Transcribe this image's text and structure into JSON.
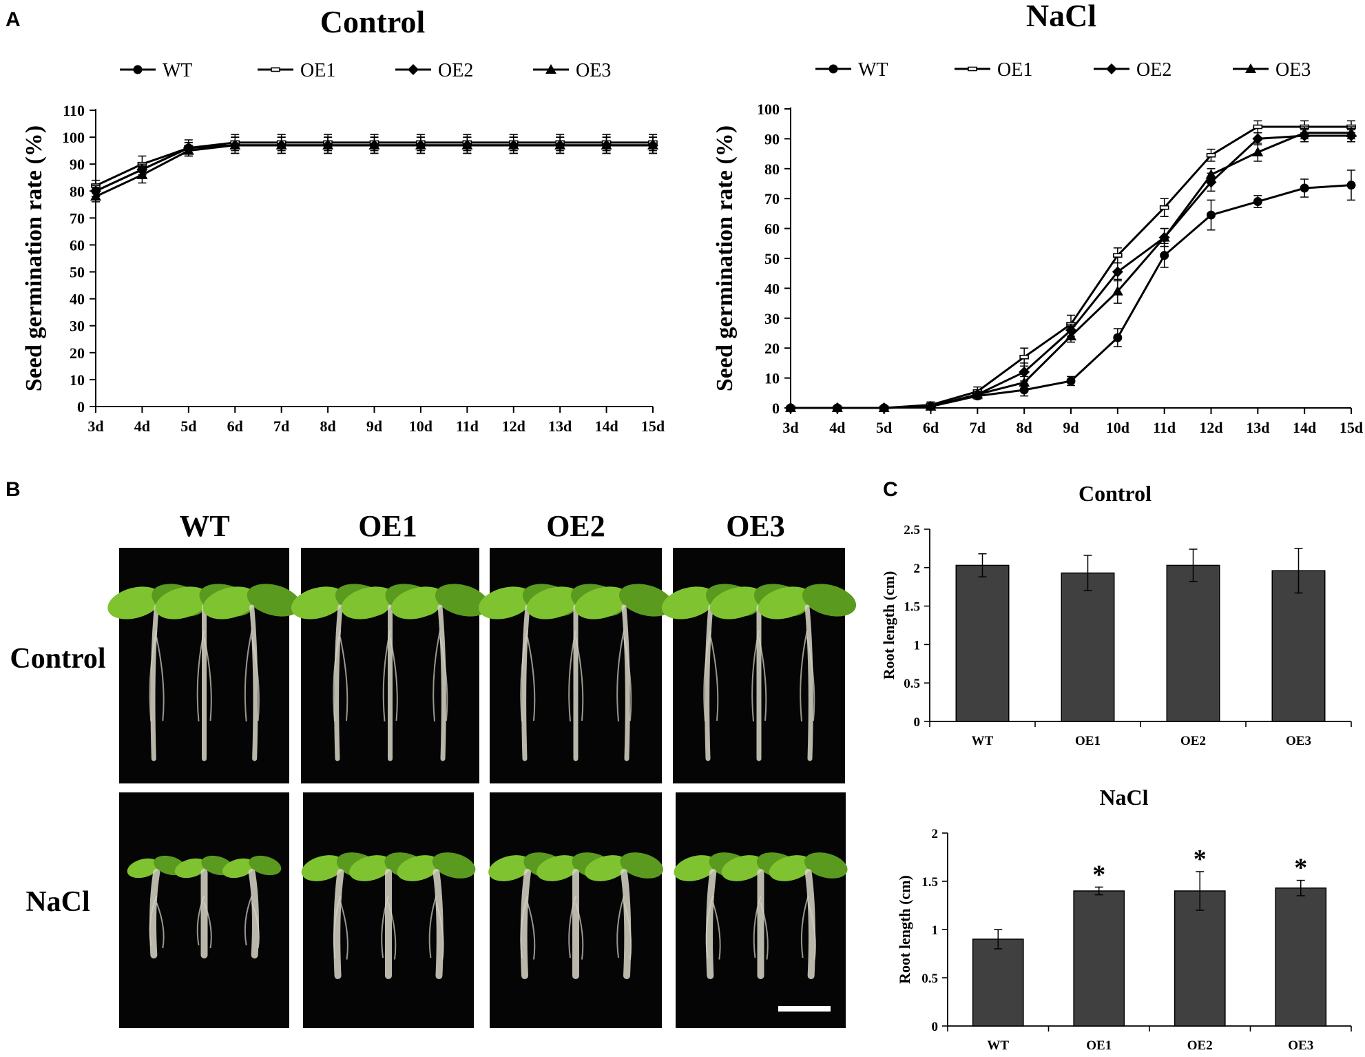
{
  "panels": {
    "a": "A",
    "b": "B",
    "c": "C"
  },
  "chart_data": [
    {
      "id": "A-control",
      "type": "line",
      "title": "Control",
      "xlabel": "",
      "ylabel": "Seed germination rate (%)",
      "categories": [
        "3d",
        "4d",
        "5d",
        "6d",
        "7d",
        "8d",
        "9d",
        "10d",
        "11d",
        "12d",
        "13d",
        "14d",
        "15d"
      ],
      "ylim": [
        0,
        110
      ],
      "yticks": [
        0,
        10,
        20,
        30,
        40,
        50,
        60,
        70,
        80,
        90,
        100,
        110
      ],
      "legend_position": "top",
      "series": [
        {
          "name": "WT",
          "marker": "circle",
          "values": [
            80,
            88,
            96,
            97,
            97,
            97,
            97,
            97,
            97,
            97,
            97,
            97,
            97
          ],
          "errors": [
            2,
            2,
            2,
            3,
            3,
            3,
            3,
            3,
            3,
            3,
            3,
            3,
            3
          ]
        },
        {
          "name": "OE1",
          "marker": "dash",
          "values": [
            82,
            90,
            96,
            98,
            98,
            98,
            98,
            98,
            98,
            98,
            98,
            98,
            98
          ],
          "errors": [
            2,
            3,
            3,
            3,
            3,
            3,
            3,
            3,
            3,
            3,
            3,
            3,
            3
          ]
        },
        {
          "name": "OE2",
          "marker": "diamond",
          "values": [
            80,
            88,
            96,
            97,
            97,
            97,
            97,
            97,
            97,
            97,
            97,
            97,
            97
          ],
          "errors": [
            2,
            2,
            2,
            3,
            3,
            3,
            3,
            3,
            3,
            3,
            3,
            3,
            3
          ]
        },
        {
          "name": "OE3",
          "marker": "triangle",
          "values": [
            78,
            86,
            95,
            97,
            97,
            97,
            97,
            97,
            97,
            97,
            97,
            97,
            97
          ],
          "errors": [
            2,
            3,
            2,
            3,
            3,
            3,
            3,
            3,
            3,
            3,
            3,
            3,
            3
          ]
        }
      ]
    },
    {
      "id": "A-nacl",
      "type": "line",
      "title": "NaCl",
      "xlabel": "",
      "ylabel": "Seed germination rate (%)",
      "categories": [
        "3d",
        "4d",
        "5d",
        "6d",
        "7d",
        "8d",
        "9d",
        "10d",
        "11d",
        "12d",
        "13d",
        "14d",
        "15d"
      ],
      "ylim": [
        0,
        100
      ],
      "yticks": [
        0,
        10,
        20,
        30,
        40,
        50,
        60,
        70,
        80,
        90,
        100
      ],
      "legend_position": "top",
      "series": [
        {
          "name": "WT",
          "marker": "circle",
          "values": [
            0,
            0,
            0,
            0.5,
            4,
            6,
            9,
            23.5,
            51,
            64.5,
            69,
            73.5,
            74.5
          ],
          "errors": [
            0,
            0,
            0,
            0.5,
            1,
            2,
            1.5,
            3,
            4,
            5,
            2,
            3,
            5
          ]
        },
        {
          "name": "OE1",
          "marker": "dash",
          "values": [
            0,
            0,
            0,
            1,
            5.5,
            17,
            28,
            51,
            67,
            84.5,
            94,
            94,
            94
          ],
          "errors": [
            0,
            0,
            0,
            1,
            1.5,
            3,
            3,
            2.5,
            3,
            2,
            2,
            2,
            2
          ]
        },
        {
          "name": "OE2",
          "marker": "diamond",
          "values": [
            0,
            0,
            0,
            0.5,
            4.5,
            12,
            26,
            45.5,
            57,
            75.5,
            90,
            91,
            91
          ],
          "errors": [
            0,
            0,
            0,
            0.5,
            1,
            3,
            2,
            3,
            3,
            3,
            2,
            2,
            2
          ]
        },
        {
          "name": "OE3",
          "marker": "triangle",
          "values": [
            0,
            0,
            0,
            0.5,
            4.5,
            8.5,
            24,
            39,
            57,
            78,
            85.5,
            92,
            92
          ],
          "errors": [
            0,
            0,
            0,
            0.5,
            1,
            2,
            2,
            4,
            3,
            2,
            3,
            2,
            2
          ]
        }
      ]
    },
    {
      "id": "C-control",
      "type": "bar",
      "title": "Control",
      "xlabel": "",
      "ylabel": "Root length (cm)",
      "categories": [
        "WT",
        "OE1",
        "OE2",
        "OE3"
      ],
      "values": [
        2.03,
        1.93,
        2.03,
        1.96
      ],
      "errors": [
        0.15,
        0.23,
        0.21,
        0.29
      ],
      "ylim": [
        0,
        2.5
      ],
      "yticks": [
        0,
        0.5,
        1,
        1.5,
        2,
        2.5
      ],
      "ytick_labels": [
        "0",
        "0.5",
        "1",
        "1.5",
        "2",
        "2.5"
      ],
      "significance": [
        "",
        "",
        "",
        ""
      ]
    },
    {
      "id": "C-nacl",
      "type": "bar",
      "title": "NaCl",
      "xlabel": "",
      "ylabel": "Root length (cm)",
      "categories": [
        "WT",
        "OE1",
        "OE2",
        "OE3"
      ],
      "values": [
        0.9,
        1.4,
        1.4,
        1.43
      ],
      "errors": [
        0.1,
        0.04,
        0.2,
        0.08
      ],
      "ylim": [
        0,
        2
      ],
      "yticks": [
        0,
        0.5,
        1,
        1.5,
        2
      ],
      "ytick_labels": [
        "0",
        "0.5",
        "1",
        "1.5",
        "2"
      ],
      "significance": [
        "",
        "*",
        "*",
        "*"
      ]
    }
  ],
  "photos": {
    "columns": [
      "WT",
      "OE1",
      "OE2",
      "OE3"
    ],
    "rows": [
      "Control",
      "NaCl"
    ],
    "scale_bar_color": "#ffffff"
  },
  "colors": {
    "line": "#000000",
    "bar_fill": "#404040",
    "photo_bg": "#050505",
    "leaf": "#7fc430",
    "leaf_dark": "#5a9a1e",
    "root": "#d9d6c8"
  }
}
